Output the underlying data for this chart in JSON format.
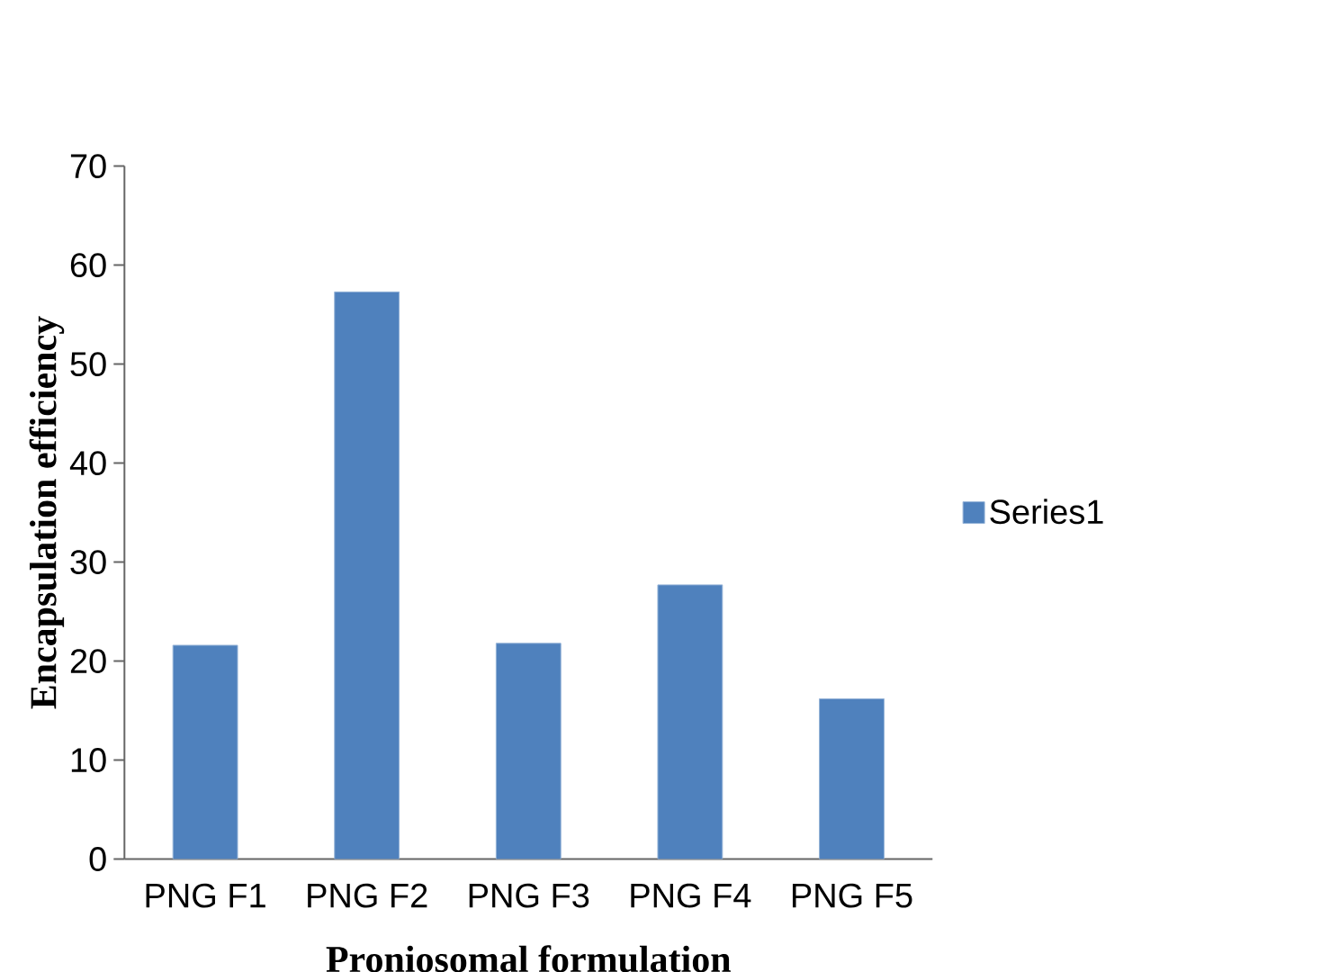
{
  "chart_data": {
    "type": "bar",
    "xlabel": "Proniosomal formulation",
    "ylabel": "Encapsulation efficiency",
    "categories": [
      "PNG F1",
      "PNG F2",
      "PNG F3",
      "PNG F4",
      "PNG F5"
    ],
    "series": [
      {
        "name": "Series1",
        "color": "#4f81bd",
        "values": [
          21.6,
          57.3,
          21.8,
          27.7,
          16.2
        ]
      }
    ],
    "ylim": [
      0,
      70
    ],
    "yticks": [
      0,
      10,
      20,
      30,
      40,
      50,
      60,
      70
    ],
    "grid": false,
    "legend": "right"
  }
}
